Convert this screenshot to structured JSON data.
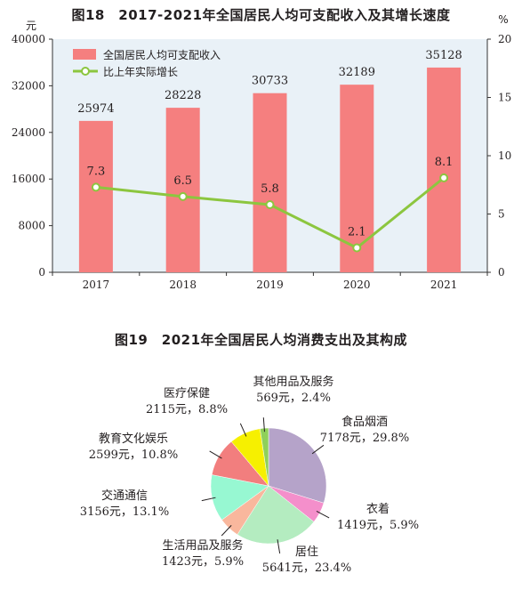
{
  "chart_data": [
    {
      "type": "bar",
      "title": "图18　2017-2021年全国居民人均可支配收入及其增长速度",
      "categories": [
        "2017",
        "2018",
        "2019",
        "2020",
        "2021"
      ],
      "series": [
        {
          "name": "全国居民人均可支配收入",
          "type": "bar",
          "axis": "left",
          "values": [
            25974,
            28228,
            30733,
            32189,
            35128
          ],
          "color": "#f57f7f"
        },
        {
          "name": "比上年实际增长",
          "type": "line",
          "axis": "right",
          "values": [
            7.3,
            6.5,
            5.8,
            2.1,
            8.1
          ],
          "color": "#8cc63f"
        }
      ],
      "y_left": {
        "unit": "元",
        "ylim": [
          0,
          40000
        ],
        "ticks": [
          "0",
          "8000",
          "16000",
          "24000",
          "32000",
          "40000"
        ]
      },
      "y_right": {
        "unit": "%",
        "ylim": [
          0,
          20
        ],
        "ticks": [
          "0",
          "5",
          "10",
          "15",
          "20"
        ]
      },
      "legend_position": "top-left",
      "plot_background": "#e9f1f7"
    },
    {
      "type": "pie",
      "title": "图19　2021年全国居民人均消费支出及其构成",
      "slices": [
        {
          "name": "食品烟酒",
          "value": 7178,
          "label": "7178元，29.8%",
          "color": "#b5a3c9"
        },
        {
          "name": "衣着",
          "value": 1419,
          "label": "1419元，5.9%",
          "color": "#f48fcb"
        },
        {
          "name": "居住",
          "value": 5641,
          "label": "5641元，23.4%",
          "color": "#b4ecc0"
        },
        {
          "name": "生活用品及服务",
          "value": 1423,
          "label": "1423元，5.9%",
          "color": "#f9b79d"
        },
        {
          "name": "交通通信",
          "value": 3156,
          "label": "3156元，13.1%",
          "color": "#97f8d2"
        },
        {
          "name": "教育文化娱乐",
          "value": 2599,
          "label": "2599元，10.8%",
          "color": "#f27e7e"
        },
        {
          "name": "医疗保健",
          "value": 2115,
          "label": "2115元，8.8%",
          "color": "#f6f000"
        },
        {
          "name": "其他用品及服务",
          "value": 569,
          "label": "569元，2.4%",
          "color": "#8fd05a"
        }
      ]
    }
  ]
}
